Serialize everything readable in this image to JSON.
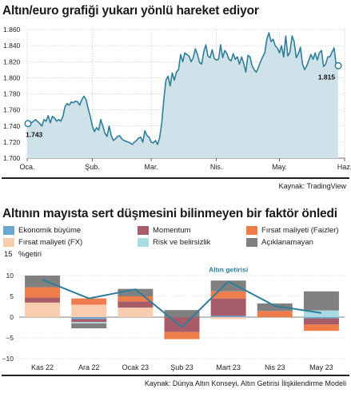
{
  "chart_data": [
    {
      "type": "area",
      "title": "Altın/euro grafiği yukarı yönlü hareket ediyor",
      "source": "Kaynak: TradingView",
      "ylim": [
        1700,
        1860
      ],
      "y_ticks": [
        1700,
        1720,
        1740,
        1760,
        1780,
        1800,
        1820,
        1840,
        1860
      ],
      "y_tick_labels": [
        "1.700",
        "1.720",
        "1.740",
        "1.760",
        "1.780",
        "1.800",
        "1.820",
        "1.840",
        "1.860"
      ],
      "x_tick_labels": [
        "Oca.",
        "Şub.",
        "Mar.",
        "Nis.",
        "May.",
        "Haz."
      ],
      "x_ticks": [
        0,
        31,
        59,
        90,
        120,
        151
      ],
      "xlim": [
        0,
        151
      ],
      "start_value_label": "1.743",
      "end_value_label": "1.815",
      "grid": true,
      "colors": {
        "line": "#2f7e99",
        "fill": "#cfe2ea"
      },
      "x": [
        0,
        2,
        4,
        6,
        7,
        8,
        9,
        10,
        11,
        12,
        13,
        14,
        15,
        16,
        17,
        18,
        19,
        20,
        21,
        22,
        23,
        24,
        25,
        26,
        27,
        28,
        29,
        30,
        31,
        32,
        33,
        34,
        35,
        36,
        37,
        38,
        39,
        40,
        41,
        42,
        43,
        44,
        45,
        46,
        47,
        48,
        49,
        50,
        51,
        52,
        53,
        54,
        55,
        56,
        57,
        58,
        59,
        60,
        61,
        62,
        63,
        64,
        65,
        66,
        67,
        68,
        69,
        70,
        71,
        72,
        73,
        74,
        75,
        76,
        77,
        78,
        79,
        80,
        81,
        82,
        83,
        84,
        85,
        86,
        87,
        88,
        89,
        90,
        91,
        92,
        93,
        94,
        95,
        96,
        97,
        98,
        99,
        100,
        101,
        102,
        103,
        104,
        105,
        106,
        107,
        108,
        109,
        110,
        111,
        112,
        113,
        114,
        115,
        116,
        117,
        118,
        119,
        120,
        121,
        122,
        123,
        124,
        125,
        126,
        127,
        128,
        129,
        130,
        131,
        132,
        133,
        134,
        135,
        136,
        137,
        138,
        139,
        140,
        141,
        142,
        143,
        144,
        145,
        146,
        147,
        148
      ],
      "values": [
        1743,
        1744,
        1748,
        1743,
        1740,
        1748,
        1746,
        1753,
        1744,
        1752,
        1750,
        1746,
        1748,
        1746,
        1752,
        1764,
        1768,
        1766,
        1770,
        1769,
        1771,
        1770,
        1766,
        1773,
        1777,
        1773,
        1762,
        1752,
        1740,
        1733,
        1738,
        1735,
        1748,
        1740,
        1731,
        1727,
        1740,
        1728,
        1722,
        1724,
        1727,
        1728,
        1724,
        1722,
        1721,
        1720,
        1719,
        1717,
        1720,
        1722,
        1725,
        1726,
        1720,
        1734,
        1728,
        1726,
        1720,
        1719,
        1722,
        1717,
        1725,
        1744,
        1773,
        1797,
        1802,
        1790,
        1806,
        1797,
        1807,
        1810,
        1829,
        1820,
        1831,
        1829,
        1827,
        1820,
        1825,
        1836,
        1829,
        1819,
        1817,
        1832,
        1841,
        1827,
        1825,
        1835,
        1824,
        1822,
        1823,
        1841,
        1825,
        1834,
        1830,
        1823,
        1821,
        1830,
        1823,
        1826,
        1817,
        1826,
        1818,
        1807,
        1828,
        1826,
        1815,
        1810,
        1807,
        1813,
        1820,
        1826,
        1831,
        1848,
        1856,
        1845,
        1848,
        1840,
        1837,
        1831,
        1840,
        1826,
        1852,
        1827,
        1832,
        1852,
        1845,
        1825,
        1830,
        1838,
        1817,
        1810,
        1815,
        1822,
        1829,
        1823,
        1831,
        1822,
        1831,
        1834,
        1814,
        1817,
        1826,
        1826,
        1832,
        1837,
        1815,
        1815
      ]
    },
    {
      "type": "bar",
      "stacked": true,
      "title": "Altının mayısta sert düşmesini bilinmeyen bir faktör önledi",
      "source": "Kaynak: Dünya Altın Konseyi, Altın Getirisi İlişkilendirme Modeli",
      "ylabel": "%getiri",
      "ylim": [
        -10,
        15
      ],
      "y_ticks": [
        -10,
        -5,
        0,
        5,
        10,
        15
      ],
      "y_tick_labels": [
        "−10",
        "−5",
        "0",
        "5",
        "10",
        "15"
      ],
      "grid": true,
      "categories": [
        "Kas 22",
        "Ara 22",
        "Ocak 23",
        "Şub 23",
        "Mart 23",
        "Nis 23",
        "May 23"
      ],
      "series": [
        {
          "name": "Ekonomik büyüme",
          "color": "#6aa8cf",
          "values": [
            0,
            -0.5,
            0,
            0,
            0.3,
            0,
            -0.3
          ]
        },
        {
          "name": "Fırsat maliyeti (FX)",
          "color": "#f8cdb0",
          "values": [
            3.5,
            3,
            2.3,
            0,
            -0.5,
            0,
            0
          ]
        },
        {
          "name": "Momentum",
          "color": "#a75d69",
          "values": [
            1.2,
            -0.7,
            1.5,
            -3.6,
            4.2,
            0,
            -1.5
          ]
        },
        {
          "name": "Risk ve belirsizlik",
          "color": "#a8dce2",
          "values": [
            0,
            -0.3,
            0,
            0,
            0,
            0,
            1.6
          ]
        },
        {
          "name": "Fırsat maliyeti (Faizler)",
          "color": "#ef7c4b",
          "values": [
            2.5,
            1.5,
            1.2,
            -1.7,
            1.7,
            1.5,
            -1.5
          ]
        },
        {
          "name": "Açıklanamayan",
          "color": "#808080",
          "values": [
            2.8,
            -1.2,
            1.8,
            1.7,
            2.6,
            1.8,
            4.6
          ]
        }
      ],
      "line": {
        "name": "Altın getirisi",
        "color": "#2f7e99",
        "values": [
          9,
          4.5,
          6.7,
          -2.4,
          8.6,
          2.7,
          1
        ]
      },
      "line_label": "Altın getirisi",
      "legend_location": "top"
    }
  ]
}
